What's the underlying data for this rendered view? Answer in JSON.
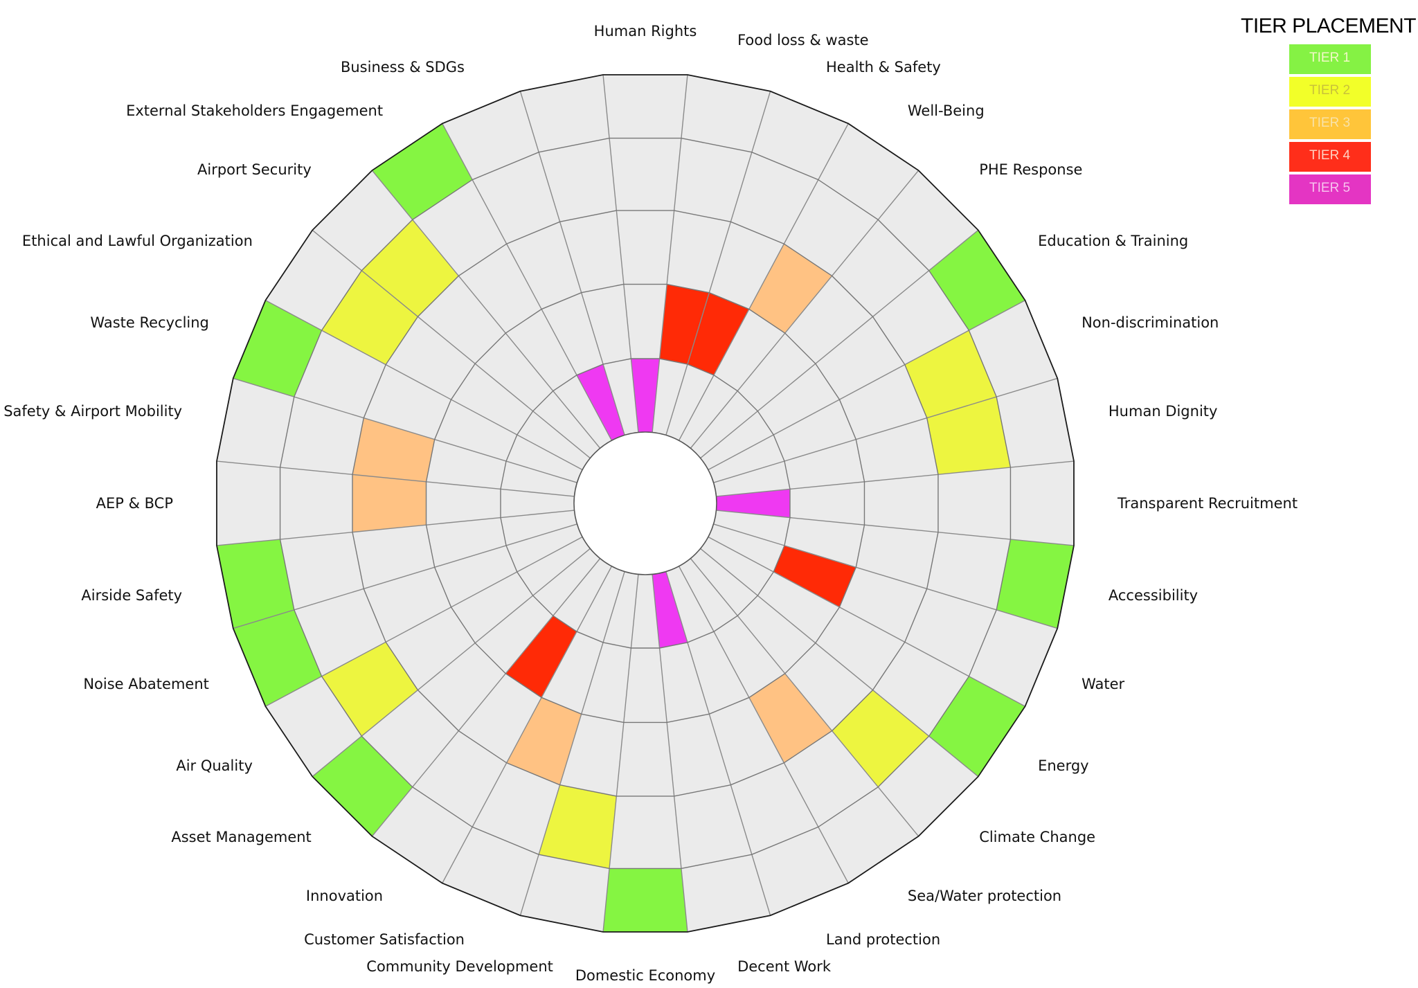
{
  "chart_data": {
    "type": "radial-tier",
    "title": "",
    "rings": 5,
    "legend": {
      "title": "TIER PLACEMENT",
      "position": "top-right",
      "tiers": [
        {
          "label": "TIER 1",
          "tier": 1,
          "color": "#85F244",
          "text_color": "#f3f8c8"
        },
        {
          "label": "TIER 2",
          "tier": 2,
          "color": "#F2FF29",
          "text_color": "#c9c23a"
        },
        {
          "label": "TIER 3",
          "tier": 3,
          "color": "#FFC53A",
          "text_color": "#f8e2a8"
        },
        {
          "label": "TIER 4",
          "tier": 4,
          "color": "#FF2E1A",
          "text_color": "#ffd0c0"
        },
        {
          "label": "TIER 5",
          "tier": 5,
          "color": "#E435C3",
          "text_color": "#f7c4ee"
        }
      ]
    },
    "tier_fill_colors": {
      "1": "#85F542",
      "2": "#EDF540",
      "3": "#FFC283",
      "4": "#FF2A06",
      "5": "#EF39F2"
    },
    "background_fill": "#EBEBEB",
    "categories": [
      {
        "label": "Human Rights",
        "tier": 5
      },
      {
        "label": "Food loss & waste",
        "tier": 4
      },
      {
        "label": "Health & Safety",
        "tier": 4
      },
      {
        "label": "Well-Being",
        "tier": 3
      },
      {
        "label": "PHE Response",
        "tier": null
      },
      {
        "label": "Education & Training",
        "tier": 1
      },
      {
        "label": "Non-discrimination",
        "tier": 2
      },
      {
        "label": "Human Dignity",
        "tier": 2
      },
      {
        "label": "Transparent Recruitment",
        "tier": 5
      },
      {
        "label": "Accessibility",
        "tier": 1
      },
      {
        "label": "Water",
        "tier": 4
      },
      {
        "label": "Energy",
        "tier": 1
      },
      {
        "label": "Climate Change",
        "tier": 2
      },
      {
        "label": "Sea/Water protection",
        "tier": 3
      },
      {
        "label": "Land protection",
        "tier": null
      },
      {
        "label": "Decent Work",
        "tier": 5
      },
      {
        "label": "Domestic Economy",
        "tier": 1
      },
      {
        "label": "Community Development",
        "tier": 2
      },
      {
        "label": "Customer Satisfaction",
        "tier": 3
      },
      {
        "label": "Innovation",
        "tier": 4
      },
      {
        "label": "Asset Management",
        "tier": 1
      },
      {
        "label": "Air Quality",
        "tier": 2
      },
      {
        "label": "Noise Abatement",
        "tier": 1
      },
      {
        "label": "Airside Safety",
        "tier": 1
      },
      {
        "label": "AEP & BCP",
        "tier": 3
      },
      {
        "label": "Landside Safety & Airport Mobility",
        "tier": 3
      },
      {
        "label": "Waste Recycling",
        "tier": 1
      },
      {
        "label": "Ethical and Lawful Organization",
        "tier": 2
      },
      {
        "label": "Airport Security",
        "tier": 2
      },
      {
        "label": "External Stakeholders Engagement",
        "tier": 1
      },
      {
        "label": "Business & SDGs",
        "tier": 5
      },
      {
        "label": "",
        "tier": null
      }
    ]
  }
}
